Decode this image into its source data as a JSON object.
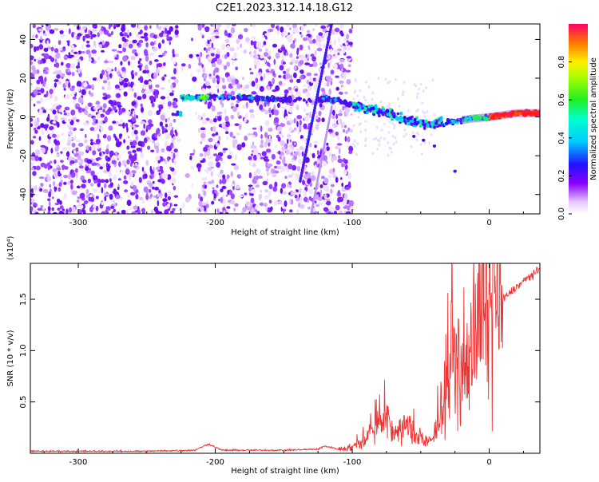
{
  "title": "C2E1.2023.312.14.18.G12",
  "chart_data": [
    {
      "type": "heatmap",
      "xlabel": "Height of straight line (km)",
      "ylabel": "Frequency (Hz)",
      "xlim": [
        -335,
        37
      ],
      "ylim": [
        -50,
        48
      ],
      "xticks": [
        -300,
        -200,
        -100,
        0
      ],
      "yticks": [
        -40,
        -20,
        0,
        20,
        40
      ],
      "colorbar": {
        "label": "Normalized spectral amplitude",
        "range": [
          0,
          1
        ],
        "ticks": [
          0.0,
          0.2,
          0.4,
          0.6,
          0.8
        ]
      },
      "features": {
        "carrier_line": [
          [
            -225,
            10
          ],
          [
            -180,
            10
          ],
          [
            -150,
            9
          ],
          [
            -110,
            9
          ],
          [
            -100,
            6
          ],
          [
            -80,
            3
          ],
          [
            -60,
            -2
          ],
          [
            -45,
            -4
          ],
          [
            -30,
            -3
          ],
          [
            -15,
            -1
          ],
          [
            0,
            0
          ],
          [
            20,
            2
          ],
          [
            37,
            2
          ]
        ],
        "noise_region_x": [
          -335,
          -100
        ],
        "sweep_lines": [
          {
            "x": [
              -138,
              -115
            ],
            "y": [
              -33,
              48
            ]
          },
          {
            "x": [
              -130,
              -115
            ],
            "y": [
              -50,
              5
            ]
          }
        ]
      }
    },
    {
      "type": "line",
      "xlabel": "Height of straight line (km)",
      "ylabel": "SNR (10 * v/v)",
      "y_multiplier": "(x10⁴)",
      "xlim": [
        -335,
        37
      ],
      "ylim": [
        0,
        1.85
      ],
      "xticks": [
        -300,
        -200,
        -100,
        0
      ],
      "yticks": [
        0.5,
        1.0,
        1.5
      ],
      "ytick_labels": [
        "0.5",
        "1.0",
        "1.5"
      ],
      "color": "#ee3333",
      "series": [
        {
          "x": [
            -335,
            -300,
            -250,
            -215,
            -205,
            -195,
            -150,
            -125,
            -120,
            -110,
            -100,
            -90,
            -80,
            -75,
            -70,
            -60,
            -50,
            -45,
            -40,
            -35,
            -30,
            -27,
            -25,
            -20,
            -15,
            -10,
            -5,
            0,
            10,
            20,
            30,
            37
          ],
          "y": [
            0.02,
            0.02,
            0.02,
            0.03,
            0.09,
            0.03,
            0.03,
            0.04,
            0.07,
            0.04,
            0.06,
            0.15,
            0.3,
            0.35,
            0.2,
            0.25,
            0.15,
            0.1,
            0.15,
            0.45,
            0.7,
            1.0,
            0.85,
            0.75,
            0.95,
            1.1,
            1.25,
            1.35,
            1.5,
            1.62,
            1.73,
            1.78
          ]
        }
      ]
    }
  ]
}
